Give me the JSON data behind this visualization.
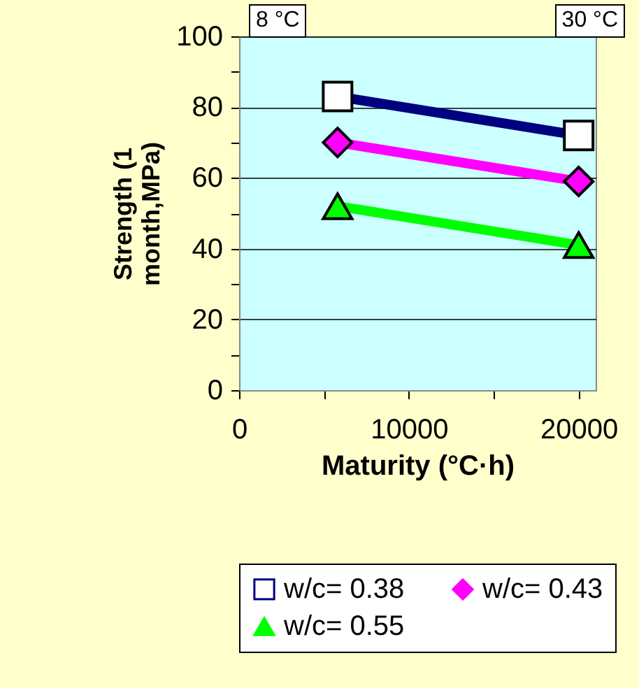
{
  "chart_data": {
    "type": "line",
    "xlabel": "Maturity (°C·h)",
    "ylabel": "Strength (1 month,MPa)",
    "annotations": [
      "8 °C",
      "30 °C"
    ],
    "x": [
      5800,
      20000
    ],
    "series": [
      {
        "name": "w/c= 0.38",
        "color": "#000080",
        "values": [
          83,
          72
        ],
        "marker": "square"
      },
      {
        "name": "w/c= 0.43",
        "color": "#ff00ff",
        "values": [
          70,
          59
        ],
        "marker": "diamond"
      },
      {
        "name": "w/c= 0.55",
        "color": "#00ff00",
        "values": [
          52,
          41
        ],
        "marker": "triangle"
      }
    ],
    "xlim": [
      0,
      21000
    ],
    "xticks": [
      0,
      {
        "value": 5000,
        "label": null
      },
      10000,
      {
        "value": 15000,
        "label": null
      },
      20000
    ],
    "ylim": [
      0,
      100
    ],
    "yticks": [
      0,
      {
        "value": 10,
        "label": null
      },
      20,
      {
        "value": 30,
        "label": null
      },
      40,
      {
        "value": 50,
        "label": null
      },
      60,
      {
        "value": 70,
        "label": null
      },
      80,
      {
        "value": 90,
        "label": null
      },
      100
    ],
    "grid": "y",
    "legend": "bottom",
    "line_style": "solid"
  }
}
